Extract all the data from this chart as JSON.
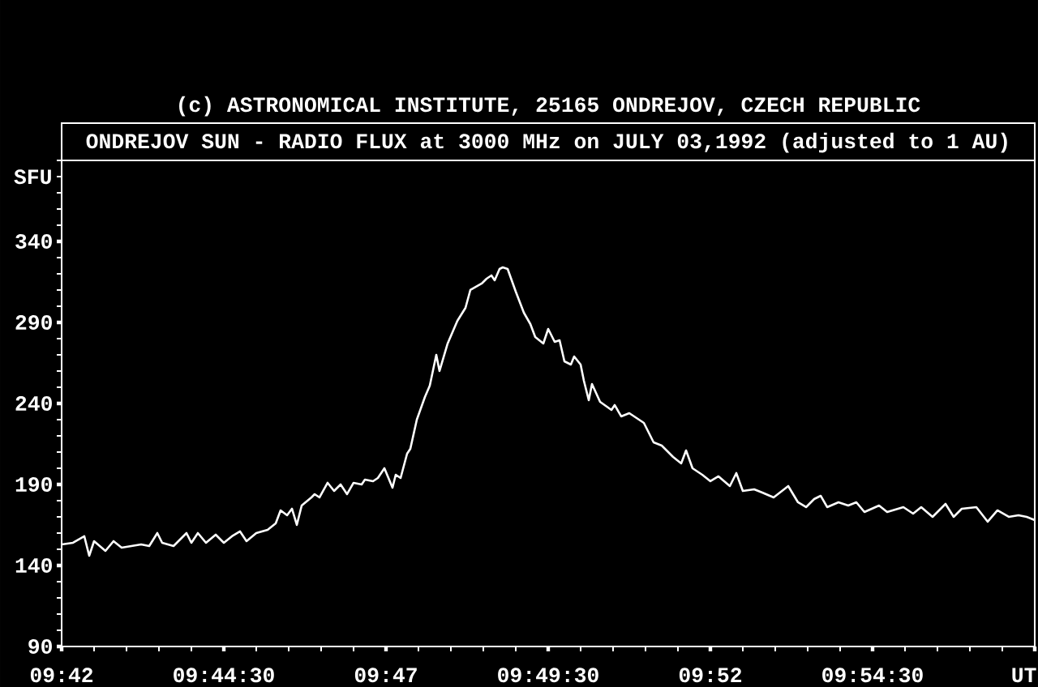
{
  "chart_data": {
    "type": "line",
    "title": "ONDREJOV SUN - RADIO FLUX at 3000 MHz on JULY 03,1992 (adjusted to 1 AU)",
    "annotations": [
      "(c) ASTRONOMICAL INSTITUTE, 25165 ONDREJOV, CZECH REPUBLIC"
    ],
    "xlabel": "UT",
    "ylabel": "SFU",
    "xlim": [
      9.7,
      9.95
    ],
    "ylim": [
      90,
      390
    ],
    "xticks": [
      {
        "value": 9.7,
        "label": "09:42"
      },
      {
        "value": 9.741667,
        "label": "09:44:30"
      },
      {
        "value": 9.783333,
        "label": "09:47"
      },
      {
        "value": 9.825,
        "label": "09:49:30"
      },
      {
        "value": 9.866667,
        "label": "09:52"
      },
      {
        "value": 9.908333,
        "label": "09:54:30"
      },
      {
        "value": 9.95,
        "label": null
      }
    ],
    "yticks": [
      90,
      140,
      190,
      240,
      290,
      340
    ],
    "color": "#ffffff",
    "line_style": "solid",
    "marker": "none",
    "x": [
      9.7,
      9.70292,
      9.70583,
      9.70708,
      9.70833,
      9.71125,
      9.71333,
      9.71542,
      9.72042,
      9.7225,
      9.72458,
      9.72583,
      9.72875,
      9.73208,
      9.73333,
      9.735,
      9.73708,
      9.73958,
      9.74167,
      9.74375,
      9.74583,
      9.7475,
      9.75,
      9.75292,
      9.755,
      9.75625,
      9.75792,
      9.75917,
      9.76042,
      9.76167,
      9.76417,
      9.765,
      9.76625,
      9.76833,
      9.77,
      9.77167,
      9.77333,
      9.775,
      9.77708,
      9.77792,
      9.78,
      9.78125,
      9.78292,
      9.785,
      9.78583,
      9.78708,
      9.78875,
      9.78958,
      9.79125,
      9.79333,
      9.79458,
      9.79625,
      9.79708,
      9.79917,
      9.80167,
      9.80375,
      9.805,
      9.80792,
      9.80917,
      9.81042,
      9.81125,
      9.8125,
      9.81333,
      9.81458,
      9.81667,
      9.81875,
      9.82042,
      9.82167,
      9.82375,
      9.825,
      9.82667,
      9.82792,
      9.82917,
      9.83083,
      9.83167,
      9.83333,
      9.83417,
      9.83542,
      9.83625,
      9.83833,
      9.84125,
      9.84208,
      9.84375,
      9.84583,
      9.84958,
      9.85083,
      9.85208,
      9.85417,
      9.85708,
      9.85917,
      9.86042,
      9.86208,
      9.86458,
      9.86667,
      9.86875,
      9.87167,
      9.87333,
      9.875,
      9.87792,
      9.88,
      9.88292,
      9.88667,
      9.88917,
      9.89125,
      9.89333,
      9.895,
      9.89667,
      9.89958,
      9.90208,
      9.90417,
      9.90625,
      9.91,
      9.91208,
      9.91625,
      9.91875,
      9.92083,
      9.92375,
      9.92708,
      9.92917,
      9.93125,
      9.935,
      9.93792,
      9.94042,
      9.94333,
      9.94583,
      9.94792,
      9.95
    ],
    "values": [
      153,
      154,
      158,
      146,
      155,
      149,
      155,
      151,
      153,
      152,
      160,
      154,
      152,
      160,
      154,
      160,
      154,
      159,
      154,
      158,
      161,
      155,
      160,
      162,
      166,
      174,
      171,
      175,
      165,
      177,
      182,
      184,
      182,
      191,
      186,
      190,
      184,
      191,
      190,
      193,
      192,
      194,
      200,
      188,
      196,
      194,
      209,
      212,
      230,
      244,
      251,
      270,
      260,
      277,
      291,
      299,
      310,
      314,
      317,
      319,
      316,
      323,
      324,
      323,
      309,
      296,
      289,
      281,
      277,
      286,
      278,
      279,
      266,
      264,
      269,
      264,
      254,
      242,
      252,
      241,
      236,
      239,
      232,
      234,
      228,
      222,
      216,
      214,
      207,
      203,
      211,
      200,
      196,
      192,
      195,
      189,
      197,
      186,
      187,
      185,
      182,
      189,
      179,
      176,
      181,
      183,
      176,
      179,
      177,
      179,
      173,
      177,
      173,
      176,
      172,
      176,
      170,
      178,
      170,
      175,
      176,
      167,
      174,
      170,
      171,
      170,
      168
    ]
  }
}
